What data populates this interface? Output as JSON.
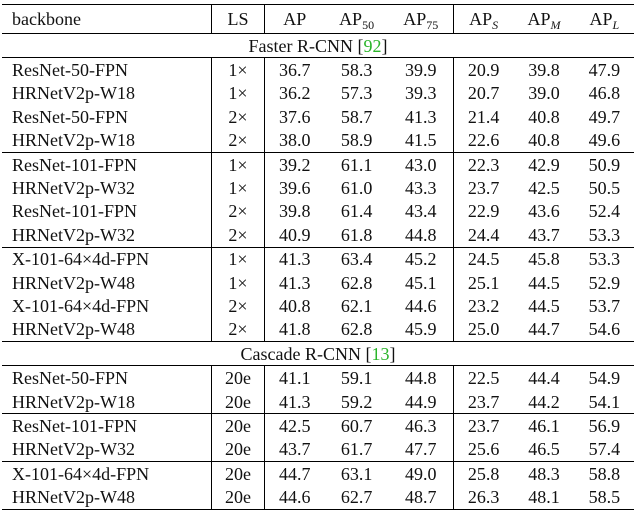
{
  "table": {
    "header": [
      {
        "text": "backbone"
      },
      {
        "text": "LS"
      },
      {
        "text": "AP"
      },
      {
        "text": "AP",
        "sub": "50"
      },
      {
        "text": "AP",
        "sub": "75"
      },
      {
        "text": "AP",
        "sub": "S",
        "italic": true
      },
      {
        "text": "AP",
        "sub": "M",
        "italic": true
      },
      {
        "text": "AP",
        "sub": "L",
        "italic": true
      }
    ],
    "sections": [
      {
        "title_parts": [
          "Faster R-CNN [",
          "92",
          "]"
        ],
        "groups": [
          {
            "rows": [
              {
                "backbone": "ResNet-50-FPN",
                "ls": "1×",
                "values": [
                  "36.7",
                  "58.3",
                  "39.9",
                  "20.9",
                  "39.8",
                  "47.9"
                ]
              },
              {
                "backbone": "HRNetV2p-W18",
                "ls": "1×",
                "values": [
                  "36.2",
                  "57.3",
                  "39.3",
                  "20.7",
                  "39.0",
                  "46.8"
                ]
              },
              {
                "backbone": "ResNet-50-FPN",
                "ls": "2×",
                "values": [
                  "37.6",
                  "58.7",
                  "41.3",
                  "21.4",
                  "40.8",
                  "49.7"
                ]
              },
              {
                "backbone": "HRNetV2p-W18",
                "ls": "2×",
                "values": [
                  "38.0",
                  "58.9",
                  "41.5",
                  "22.6",
                  "40.8",
                  "49.6"
                ]
              }
            ]
          },
          {
            "rows": [
              {
                "backbone": "ResNet-101-FPN",
                "ls": "1×",
                "values": [
                  "39.2",
                  "61.1",
                  "43.0",
                  "22.3",
                  "42.9",
                  "50.9"
                ]
              },
              {
                "backbone": "HRNetV2p-W32",
                "ls": "1×",
                "values": [
                  "39.6",
                  "61.0",
                  "43.3",
                  "23.7",
                  "42.5",
                  "50.5"
                ]
              },
              {
                "backbone": "ResNet-101-FPN",
                "ls": "2×",
                "values": [
                  "39.8",
                  "61.4",
                  "43.4",
                  "22.9",
                  "43.6",
                  "52.4"
                ]
              },
              {
                "backbone": "HRNetV2p-W32",
                "ls": "2×",
                "values": [
                  "40.9",
                  "61.8",
                  "44.8",
                  "24.4",
                  "43.7",
                  "53.3"
                ]
              }
            ]
          },
          {
            "rows": [
              {
                "backbone": "X-101-64×4d-FPN",
                "ls": "1×",
                "values": [
                  "41.3",
                  "63.4",
                  "45.2",
                  "24.5",
                  "45.8",
                  "53.3"
                ]
              },
              {
                "backbone": "HRNetV2p-W48",
                "ls": "1×",
                "values": [
                  "41.3",
                  "62.8",
                  "45.1",
                  "25.1",
                  "44.5",
                  "52.9"
                ]
              },
              {
                "backbone": "X-101-64×4d-FPN",
                "ls": "2×",
                "values": [
                  "40.8",
                  "62.1",
                  "44.6",
                  "23.2",
                  "44.5",
                  "53.7"
                ]
              },
              {
                "backbone": "HRNetV2p-W48",
                "ls": "2×",
                "values": [
                  "41.8",
                  "62.8",
                  "45.9",
                  "25.0",
                  "44.7",
                  "54.6"
                ]
              }
            ]
          }
        ]
      },
      {
        "title_parts": [
          "Cascade R-CNN [",
          "13",
          "]"
        ],
        "groups": [
          {
            "rows": [
              {
                "backbone": "ResNet-50-FPN",
                "ls": "20e",
                "values": [
                  "41.1",
                  "59.1",
                  "44.8",
                  "22.5",
                  "44.4",
                  "54.9"
                ]
              },
              {
                "backbone": "HRNetV2p-W18",
                "ls": "20e",
                "values": [
                  "41.3",
                  "59.2",
                  "44.9",
                  "23.7",
                  "44.2",
                  "54.1"
                ]
              }
            ]
          },
          {
            "rows": [
              {
                "backbone": "ResNet-101-FPN",
                "ls": "20e",
                "values": [
                  "42.5",
                  "60.7",
                  "46.3",
                  "23.7",
                  "46.1",
                  "56.9"
                ]
              },
              {
                "backbone": "HRNetV2p-W32",
                "ls": "20e",
                "values": [
                  "43.7",
                  "61.7",
                  "47.7",
                  "25.6",
                  "46.5",
                  "57.4"
                ]
              }
            ]
          },
          {
            "rows": [
              {
                "backbone": "X-101-64×4d-FPN",
                "ls": "20e",
                "values": [
                  "44.7",
                  "63.1",
                  "49.0",
                  "25.8",
                  "48.3",
                  "58.8"
                ]
              },
              {
                "backbone": "HRNetV2p-W48",
                "ls": "20e",
                "values": [
                  "44.6",
                  "62.7",
                  "48.7",
                  "26.3",
                  "48.1",
                  "58.5"
                ]
              }
            ]
          }
        ]
      }
    ]
  }
}
